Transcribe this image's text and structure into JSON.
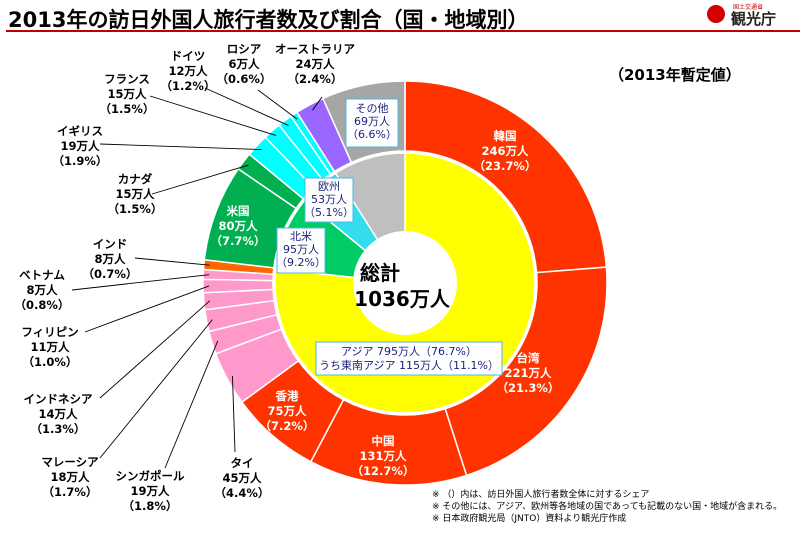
{
  "title": "2013年の訪日外国人旅行者数及び割合（国・地域別）",
  "subtitle": "（2013年暫定値）",
  "logo": {
    "name": "観光庁",
    "small": "国土交通省"
  },
  "colors": {
    "korea": "#ff3300",
    "taiwan": "#ff3300",
    "china": "#ff3300",
    "hongkong": "#ff3300",
    "thai": "#ff99cc",
    "singapore": "#ff99cc",
    "malaysia": "#ff99cc",
    "indonesia": "#ff99cc",
    "philippines": "#ff99cc",
    "vietnam": "#ff99cc",
    "india": "#ff6600",
    "usa": "#00b050",
    "canada": "#00b050",
    "uk": "#00ffff",
    "france": "#00ffff",
    "germany": "#00ffff",
    "russia": "#00ffff",
    "australia": "#9966ff",
    "others": "#a6a6a6",
    "asia_ring": "#ffff00",
    "na_ring": "#00cc66",
    "eu_ring": "#33ddee",
    "others_ring": "#bfbfbf"
  },
  "chart_data": {
    "type": "pie",
    "title": "2013年の訪日外国人旅行者数及び割合（国・地域別）",
    "unit": "万人",
    "total": {
      "line1": "総計",
      "line2": "1036万人",
      "value": 1036
    },
    "slices": [
      {
        "key": "korea",
        "name": "韓国",
        "value": 246,
        "value_label": "246万人",
        "pct_label": "（23.7%）"
      },
      {
        "key": "taiwan",
        "name": "台湾",
        "value": 221,
        "value_label": "221万人",
        "pct_label": "（21.3%）"
      },
      {
        "key": "china",
        "name": "中国",
        "value": 131,
        "value_label": "131万人",
        "pct_label": "（12.7%）"
      },
      {
        "key": "hongkong",
        "name": "香港",
        "value": 75,
        "value_label": "75万人",
        "pct_label": "（7.2%）"
      },
      {
        "key": "thai",
        "name": "タイ",
        "value": 45,
        "value_label": "45万人",
        "pct_label": "（4.4%）"
      },
      {
        "key": "singapore",
        "name": "シンガポール",
        "value": 19,
        "value_label": "19万人",
        "pct_label": "（1.8%）"
      },
      {
        "key": "malaysia",
        "name": "マレーシア",
        "value": 18,
        "value_label": "18万人",
        "pct_label": "（1.7%）"
      },
      {
        "key": "indonesia",
        "name": "インドネシア",
        "value": 14,
        "value_label": "14万人",
        "pct_label": "（1.3%）"
      },
      {
        "key": "philippines",
        "name": "フィリピン",
        "value": 11,
        "value_label": "11万人",
        "pct_label": "（1.0%）"
      },
      {
        "key": "vietnam",
        "name": "ベトナム",
        "value": 8,
        "value_label": "8万人",
        "pct_label": "（0.8%）"
      },
      {
        "key": "india",
        "name": "インド",
        "value": 8,
        "value_label": "8万人",
        "pct_label": "（0.7%）"
      },
      {
        "key": "usa",
        "name": "米国",
        "value": 80,
        "value_label": "80万人",
        "pct_label": "（7.7%）"
      },
      {
        "key": "canada",
        "name": "カナダ",
        "value": 15,
        "value_label": "15万人",
        "pct_label": "（1.5%）"
      },
      {
        "key": "uk",
        "name": "イギリス",
        "value": 19,
        "value_label": "19万人",
        "pct_label": "（1.9%）"
      },
      {
        "key": "france",
        "name": "フランス",
        "value": 15,
        "value_label": "15万人",
        "pct_label": "（1.5%）"
      },
      {
        "key": "germany",
        "name": "ドイツ",
        "value": 12,
        "value_label": "12万人",
        "pct_label": "（1.2%）"
      },
      {
        "key": "russia",
        "name": "ロシア",
        "value": 6,
        "value_label": "6万人",
        "pct_label": "（0.6%）"
      },
      {
        "key": "australia",
        "name": "オーストラリア",
        "value": 24,
        "value_label": "24万人",
        "pct_label": "（2.4%）"
      },
      {
        "key": "others",
        "name": "その他",
        "value": 69,
        "value_label": "69万人",
        "pct_label": "（6.6%）"
      }
    ],
    "inner_ring": [
      {
        "key": "asia_ring",
        "name": "アジア",
        "value": 795,
        "label": "アジア 795万人（76.7%）",
        "label2": "うち東南アジア 115万人（11.1%）"
      },
      {
        "key": "na_ring",
        "name": "北米",
        "value": 95,
        "value_label": "95万人",
        "pct_label": "（9.2%）"
      },
      {
        "key": "eu_ring",
        "name": "欧州",
        "value": 53,
        "value_label": "53万人",
        "pct_label": "（5.1%）"
      },
      {
        "key": "others_ring",
        "name": "その他",
        "value": 93
      }
    ]
  },
  "notes": [
    "※ （）内は、訪日外国人旅行者数全体に対するシェア",
    "※ その他には、アジア、欧州等各地域の国であっても記載のない国・地域が含まれる。",
    "※ 日本政府観光局（JNTO）資料より観光庁作成"
  ]
}
